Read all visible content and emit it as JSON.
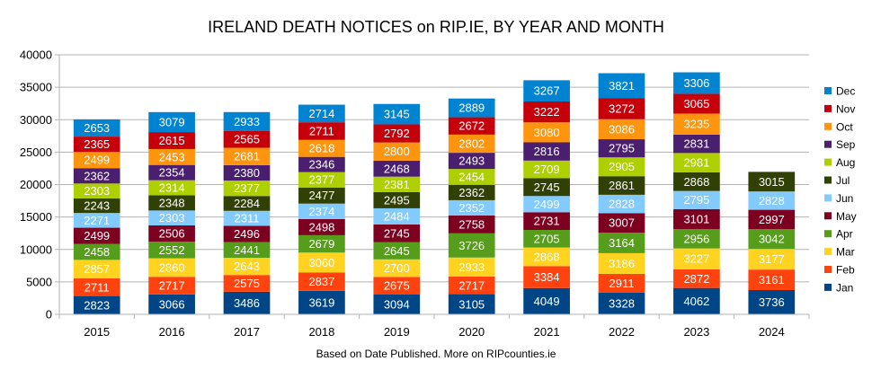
{
  "chart_data": {
    "type": "bar",
    "stacked": true,
    "title": "IRELAND DEATH NOTICES on RIP.IE, BY YEAR AND MONTH",
    "footnote": "Based on Date Published. More on RIPcounties.ie",
    "xlabel": "",
    "ylabel": "",
    "ylim": [
      0,
      40000
    ],
    "yticks": [
      0,
      5000,
      10000,
      15000,
      20000,
      25000,
      30000,
      35000,
      40000
    ],
    "grid": true,
    "legend_position": "right",
    "categories": [
      "2015",
      "2016",
      "2017",
      "2018",
      "2019",
      "2020",
      "2021",
      "2022",
      "2023",
      "2024"
    ],
    "series": [
      {
        "name": "Jan",
        "color": "#004586",
        "values": [
          2823,
          3066,
          3486,
          3619,
          3094,
          3105,
          4049,
          3328,
          4062,
          3736
        ]
      },
      {
        "name": "Feb",
        "color": "#ff420e",
        "values": [
          2711,
          2717,
          2575,
          2837,
          2675,
          2717,
          3384,
          2911,
          2872,
          3161
        ]
      },
      {
        "name": "Mar",
        "color": "#ffd320",
        "values": [
          2857,
          2860,
          2643,
          3060,
          2700,
          2933,
          2868,
          3186,
          3227,
          3177
        ]
      },
      {
        "name": "Apr",
        "color": "#579d1c",
        "values": [
          2458,
          2552,
          2441,
          2679,
          2645,
          3726,
          2705,
          3164,
          2956,
          3042
        ]
      },
      {
        "name": "May",
        "color": "#7e0021",
        "values": [
          2499,
          2506,
          2496,
          2498,
          2745,
          2758,
          2731,
          3007,
          3101,
          2997
        ]
      },
      {
        "name": "Jun",
        "color": "#83caff",
        "values": [
          2271,
          2303,
          2311,
          2374,
          2484,
          2352,
          2499,
          2828,
          2795,
          2828
        ]
      },
      {
        "name": "Jul",
        "color": "#314004",
        "values": [
          2243,
          2348,
          2284,
          2477,
          2495,
          2362,
          2745,
          2861,
          2868,
          3015
        ]
      },
      {
        "name": "Aug",
        "color": "#aecf00",
        "values": [
          2303,
          2314,
          2377,
          2377,
          2381,
          2454,
          2709,
          2905,
          2981,
          null
        ]
      },
      {
        "name": "Sep",
        "color": "#4b1f6f",
        "values": [
          2362,
          2354,
          2380,
          2346,
          2468,
          2493,
          2816,
          2795,
          2831,
          null
        ]
      },
      {
        "name": "Oct",
        "color": "#ff950e",
        "values": [
          2499,
          2453,
          2681,
          2618,
          2800,
          2802,
          3080,
          3086,
          3235,
          null
        ]
      },
      {
        "name": "Nov",
        "color": "#c5000b",
        "values": [
          2365,
          2615,
          2565,
          2711,
          2792,
          2672,
          3222,
          3272,
          3065,
          null
        ]
      },
      {
        "name": "Dec",
        "color": "#0084d1",
        "values": [
          2653,
          3079,
          2933,
          2714,
          3145,
          2889,
          3267,
          3821,
          3306,
          null
        ]
      }
    ]
  }
}
